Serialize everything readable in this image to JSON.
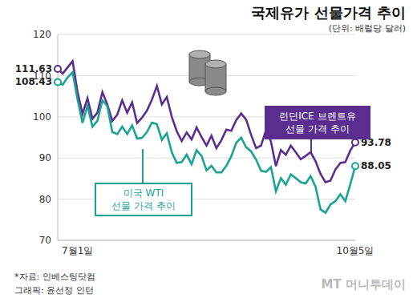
{
  "chart_data": {
    "type": "line",
    "title": "국제유가 선물가격 추이",
    "subtitle": "(단위: 배럴당 달러)",
    "categories": [
      null,
      null,
      null,
      null,
      "7월1일",
      null,
      null,
      null,
      null,
      null,
      null,
      null,
      null,
      null,
      null,
      null,
      null,
      null,
      null,
      null,
      null,
      null,
      null,
      null,
      null,
      null,
      null,
      null,
      null,
      null,
      null,
      null,
      null,
      null,
      null,
      null,
      null,
      null,
      null,
      null,
      null,
      null,
      null,
      null,
      null,
      null,
      null,
      null,
      null,
      null,
      null,
      null,
      null,
      null,
      null,
      null,
      null,
      null,
      null,
      null,
      "10월5일"
    ],
    "series": [
      {
        "name": "런던ICE 브렌트유 선물 가격 추이",
        "color": "#5b2d8e",
        "marker": "hollow_ends",
        "values": [
          111.63,
          110.5,
          112.0,
          113.5,
          106.0,
          100.7,
          104.5,
          99.5,
          101.0,
          106.0,
          103.0,
          99.0,
          100.5,
          104.0,
          101.0,
          103.5,
          98.5,
          99.8,
          101.5,
          104.2,
          107.5,
          103.0,
          104.8,
          100.0,
          96.5,
          94.1,
          96.2,
          94.5,
          97.4,
          95.1,
          93.0,
          95.4,
          92.4,
          94.3,
          96.9,
          96.6,
          99.2,
          100.8,
          99.3,
          95.6,
          92.4,
          93.0,
          96.8,
          94.0,
          88.0,
          91.9,
          90.8,
          93.0,
          91.4,
          89.7,
          90.5,
          91.4,
          89.2,
          86.1,
          84.1,
          84.5,
          87.2,
          88.8,
          89.0,
          91.8,
          93.78
        ]
      },
      {
        "name": "미국 WTI 선물 가격 추이",
        "color": "#1ba391",
        "marker": "hollow_ends",
        "values": [
          108.43,
          107.8,
          109.6,
          110.8,
          104.2,
          98.5,
          102.7,
          97.6,
          99.0,
          104.0,
          102.6,
          96.3,
          95.8,
          97.6,
          95.8,
          97.9,
          94.7,
          94.9,
          96.3,
          98.6,
          98.2,
          94.4,
          96.0,
          91.4,
          88.8,
          89.0,
          90.8,
          88.5,
          91.9,
          90.5,
          87.0,
          88.1,
          86.5,
          86.5,
          88.1,
          90.4,
          93.7,
          94.9,
          92.6,
          91.6,
          89.6,
          86.9,
          86.6,
          87.8,
          81.9,
          85.1,
          83.5,
          86.0,
          85.1,
          84.1,
          83.8,
          85.6,
          83.0,
          77.5,
          76.7,
          78.7,
          79.5,
          81.2,
          79.5,
          83.6,
          88.05
        ]
      }
    ],
    "ylim": [
      70,
      120
    ],
    "yticks": [
      70,
      80,
      90,
      100,
      110,
      120
    ],
    "grid": true,
    "source": "*자료: 인베스팅닷컴",
    "credit": "그래픽: 윤선정 인턴",
    "logo": "MT 머니투데이"
  }
}
